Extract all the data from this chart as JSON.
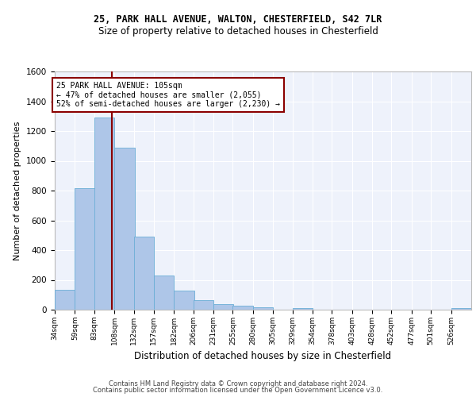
{
  "title1": "25, PARK HALL AVENUE, WALTON, CHESTERFIELD, S42 7LR",
  "title2": "Size of property relative to detached houses in Chesterfield",
  "xlabel": "Distribution of detached houses by size in Chesterfield",
  "ylabel": "Number of detached properties",
  "footer1": "Contains HM Land Registry data © Crown copyright and database right 2024.",
  "footer2": "Contains public sector information licensed under the Open Government Licence v3.0.",
  "annotation_line1": "25 PARK HALL AVENUE: 105sqm",
  "annotation_line2": "← 47% of detached houses are smaller (2,055)",
  "annotation_line3": "52% of semi-detached houses are larger (2,230) →",
  "property_size": 105,
  "bar_color": "#aec6e8",
  "bar_edge_color": "#6aaed6",
  "vline_color": "#8b0000",
  "annotation_box_color": "#8b0000",
  "background_color": "#eef2fb",
  "grid_color": "#ffffff",
  "categories": [
    "34sqm",
    "59sqm",
    "83sqm",
    "108sqm",
    "132sqm",
    "157sqm",
    "182sqm",
    "206sqm",
    "231sqm",
    "255sqm",
    "280sqm",
    "305sqm",
    "329sqm",
    "354sqm",
    "378sqm",
    "403sqm",
    "428sqm",
    "452sqm",
    "477sqm",
    "501sqm",
    "526sqm"
  ],
  "bin_left_edges": [
    34,
    59,
    83,
    108,
    132,
    157,
    182,
    206,
    231,
    255,
    280,
    305,
    329,
    354,
    378,
    403,
    428,
    452,
    477,
    501,
    526
  ],
  "bin_width": 25,
  "values": [
    135,
    815,
    1290,
    1090,
    490,
    230,
    130,
    65,
    38,
    25,
    15,
    0,
    12,
    0,
    0,
    0,
    0,
    0,
    0,
    0,
    12
  ],
  "ylim": [
    0,
    1600
  ],
  "yticks": [
    0,
    200,
    400,
    600,
    800,
    1000,
    1200,
    1400,
    1600
  ],
  "title1_fontsize": 8.5,
  "title2_fontsize": 8.5,
  "ylabel_fontsize": 8,
  "xlabel_fontsize": 8.5,
  "tick_fontsize": 7.5,
  "xtick_fontsize": 6.5,
  "footer_fontsize": 6,
  "annotation_fontsize": 7
}
